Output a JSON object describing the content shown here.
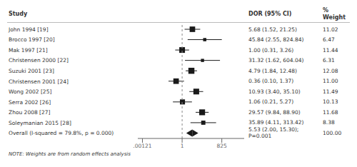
{
  "chart_data": {
    "type": "forest",
    "log": "x",
    "column_labels": [
      "Study",
      "DOR (95% CI)",
      "%",
      "Weight"
    ],
    "categories": [
      "John 1994 [19]",
      "Brocco 1997 [20]",
      "Mak 1997 [21]",
      "Christensen 2000 [22]",
      "Suzuki 2001 [23]",
      "Christensen 2001 [24]",
      "Wong 2002 [25]",
      "Serra 2002 [26]",
      "Zhou 2008 [27]",
      "Soleymanian 2015 [28]",
      "Overall (I-squared = 79.8%, p = 0.000)"
    ],
    "values": [
      5.68,
      45.84,
      1.0,
      31.32,
      4.79,
      0.36,
      10.93,
      1.06,
      29.57,
      35.89,
      5.53
    ],
    "ci_lo": [
      1.52,
      2.55,
      0.31,
      1.62,
      1.84,
      0.1,
      3.4,
      0.21,
      9.84,
      4.11,
      2.0
    ],
    "ci_hi": [
      21.25,
      824.84,
      3.26,
      604.04,
      12.48,
      1.37,
      35.1,
      5.27,
      88.9,
      313.42,
      15.3
    ],
    "value_labels": [
      "5.68 (1.52, 21.25)",
      "45.84 (2.55, 824.84)",
      "1.00 (0.31, 3.26)",
      "31.32 (1.62, 604.04)",
      "4.79 (1.84, 12.48)",
      "0.36 (0.10, 1.37)",
      "10.93 (3.40, 35.10)",
      "1.06 (0.21, 5.27)",
      "29.57 (9.84, 88.90)",
      "35.89 (4.11, 313.42)",
      "5.53 (2.00, 15.30);"
    ],
    "summary_label": "P=0.001",
    "weights": [
      11.02,
      6.47,
      11.44,
      6.31,
      12.08,
      11.0,
      11.49,
      10.13,
      11.68,
      8.38,
      100.0
    ],
    "weight_labels": [
      "11.02",
      "6.47",
      "11.44",
      "6.31",
      "12.08",
      "11.00",
      "11.49",
      "10.13",
      "11.68",
      "8.38",
      "100.00"
    ],
    "marker": [
      "square",
      "square",
      "square",
      "square",
      "square",
      "square",
      "square",
      "square",
      "square",
      "square",
      "diamond"
    ],
    "ref_line": 1,
    "xlim": [
      0.000553084,
      36315.5
    ],
    "xticks": [
      {
        "value": 0.00121,
        "label": ".00121"
      },
      1,
      825
    ],
    "note": "NOTE: Weights are from random effects analysis",
    "color": "#1a1a1a"
  }
}
